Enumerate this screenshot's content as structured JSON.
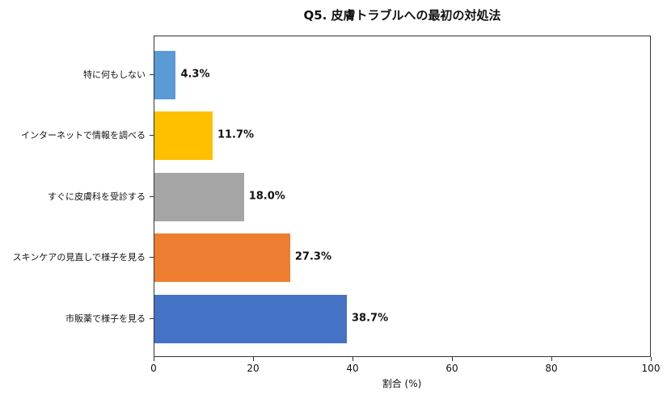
{
  "chart_data": {
    "type": "bar",
    "orientation": "horizontal",
    "title": "Q5. 皮膚トラブルへの最初の対処法",
    "xlabel": "割合 (%)",
    "ylabel": "",
    "xlim": [
      0,
      100
    ],
    "xticks": [
      "0",
      "20",
      "40",
      "60",
      "80",
      "100"
    ],
    "categories": [
      "特に何もしない",
      "インターネットで情報を調べる",
      "すぐに皮膚科を受診する",
      "スキンケアの見直しで様子を見る",
      "市販薬で様子を見る"
    ],
    "values": [
      4.3,
      11.7,
      18.0,
      27.3,
      38.7
    ],
    "value_labels": [
      "4.3%",
      "11.7%",
      "18.0%",
      "27.3%",
      "38.7%"
    ],
    "colors": [
      "#5b9bd5",
      "#ffc000",
      "#a5a5a5",
      "#ed7d31",
      "#4472c4"
    ],
    "grid": false,
    "legend": null
  }
}
